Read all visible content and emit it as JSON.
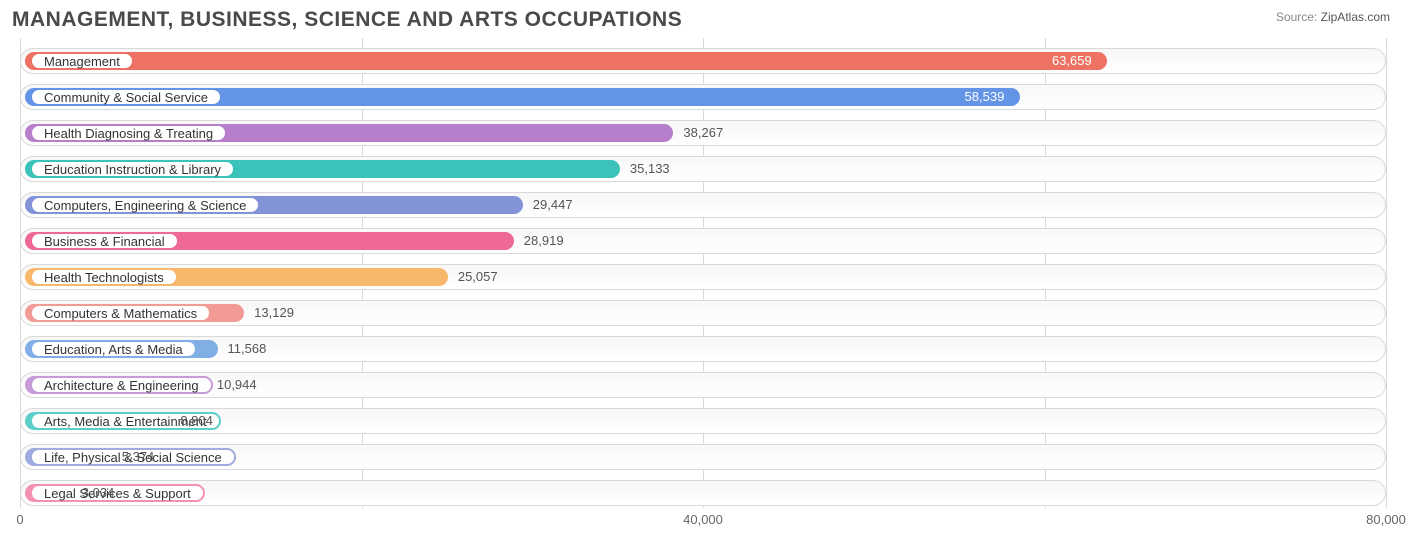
{
  "title": "MANAGEMENT, BUSINESS, SCIENCE AND ARTS OCCUPATIONS",
  "source_label": "Source:",
  "source_site": "ZipAtlas.com",
  "chart": {
    "type": "bar-horizontal",
    "x_max": 80000,
    "x_ticks": [
      {
        "value": 0,
        "label": "0"
      },
      {
        "value": 40000,
        "label": "40,000"
      },
      {
        "value": 80000,
        "label": "80,000"
      }
    ],
    "gridlines": [
      0,
      20000,
      40000,
      60000,
      80000
    ],
    "gridline_color": "#d9d9d9",
    "background_color": "#ffffff",
    "track_border": "#d9d9d9",
    "rows": [
      {
        "label": "Management",
        "value": 63659,
        "value_text": "63,659",
        "color": "#ee7264",
        "label_inside": true
      },
      {
        "label": "Community & Social Service",
        "value": 58539,
        "value_text": "58,539",
        "color": "#6394e6",
        "label_inside": true
      },
      {
        "label": "Health Diagnosing & Treating",
        "value": 38267,
        "value_text": "38,267",
        "color": "#b77fcb",
        "label_inside": false
      },
      {
        "label": "Education Instruction & Library",
        "value": 35133,
        "value_text": "35,133",
        "color": "#3bc3bb",
        "label_inside": false
      },
      {
        "label": "Computers, Engineering & Science",
        "value": 29447,
        "value_text": "29,447",
        "color": "#8393d8",
        "label_inside": false
      },
      {
        "label": "Business & Financial",
        "value": 28919,
        "value_text": "28,919",
        "color": "#ee6a94",
        "label_inside": false
      },
      {
        "label": "Health Technologists",
        "value": 25057,
        "value_text": "25,057",
        "color": "#f7b86b",
        "label_inside": false
      },
      {
        "label": "Computers & Mathematics",
        "value": 13129,
        "value_text": "13,129",
        "color": "#f29a94",
        "label_inside": false
      },
      {
        "label": "Education, Arts & Media",
        "value": 11568,
        "value_text": "11,568",
        "color": "#82aee6",
        "label_inside": false
      },
      {
        "label": "Architecture & Engineering",
        "value": 10944,
        "value_text": "10,944",
        "color": "#c89ad8",
        "label_inside": false
      },
      {
        "label": "Arts, Media & Entertainment",
        "value": 8804,
        "value_text": "8,804",
        "color": "#5ecfc8",
        "label_inside": false
      },
      {
        "label": "Life, Physical & Social Science",
        "value": 5374,
        "value_text": "5,374",
        "color": "#a0acdf",
        "label_inside": false
      },
      {
        "label": "Legal Services & Support",
        "value": 3034,
        "value_text": "3,034",
        "color": "#f392b0",
        "label_inside": false
      }
    ],
    "label_fontsize": 13,
    "title_fontsize": 21,
    "pill_bg": "#ffffff"
  }
}
